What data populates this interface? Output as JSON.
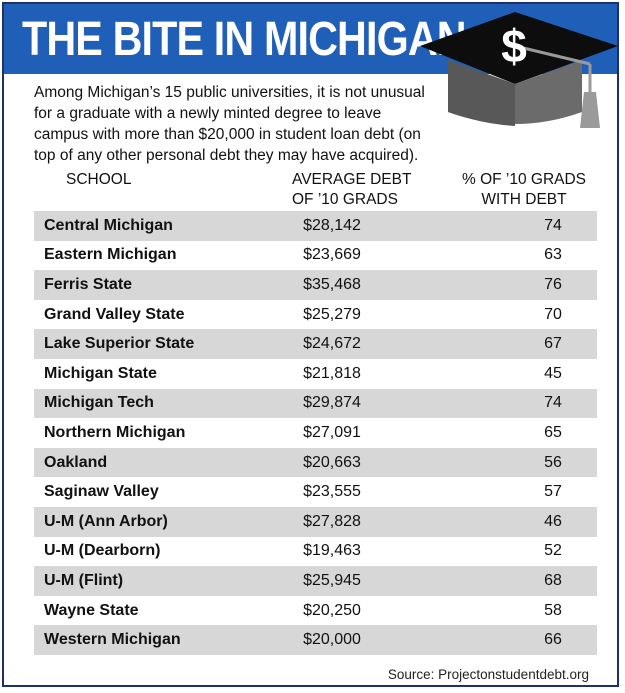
{
  "title": "THE BITE IN MICHIGAN",
  "cap_symbol": "$",
  "intro": "Among Michigan’s 15 public universities, it is not unusual for a graduate with a newly minted degree to leave campus with more than $20,000 in student loan debt (on top of any other personal debt they may have acquired).",
  "headers": {
    "school": "SCHOOL",
    "debt_line1": "AVERAGE DEBT",
    "debt_line2": "OF ’10 GRADS",
    "pct_line1": "% OF ’10 GRADS",
    "pct_line2": "WITH DEBT"
  },
  "rows": [
    {
      "school": "Central Michigan",
      "debt": "$28,142",
      "pct": "74"
    },
    {
      "school": "Eastern Michigan",
      "debt": "$23,669",
      "pct": "63"
    },
    {
      "school": "Ferris State",
      "debt": "$35,468",
      "pct": "76"
    },
    {
      "school": "Grand Valley State",
      "debt": "$25,279",
      "pct": "70"
    },
    {
      "school": "Lake Superior State",
      "debt": "$24,672",
      "pct": "67"
    },
    {
      "school": "Michigan State",
      "debt": "$21,818",
      "pct": "45"
    },
    {
      "school": "Michigan Tech",
      "debt": "$29,874",
      "pct": "74"
    },
    {
      "school": "Northern Michigan",
      "debt": "$27,091",
      "pct": "65"
    },
    {
      "school": "Oakland",
      "debt": "$20,663",
      "pct": "56"
    },
    {
      "school": "Saginaw Valley",
      "debt": "$23,555",
      "pct": "57"
    },
    {
      "school": "U-M (Ann Arbor)",
      "debt": "$27,828",
      "pct": "46"
    },
    {
      "school": "U-M (Dearborn)",
      "debt": "$19,463",
      "pct": "52"
    },
    {
      "school": "U-M (Flint)",
      "debt": "$25,945",
      "pct": "68"
    },
    {
      "school": "Wayne State",
      "debt": "$20,250",
      "pct": "58"
    },
    {
      "school": "Western Michigan",
      "debt": "$20,000",
      "pct": "66"
    }
  ],
  "source": "Source: Projectonstudentdebt.org",
  "colors": {
    "banner": "#1f5fb8",
    "shade": "#d7d7d8",
    "cap": "#0d0d0d",
    "tassel": "#9a9a9a"
  }
}
